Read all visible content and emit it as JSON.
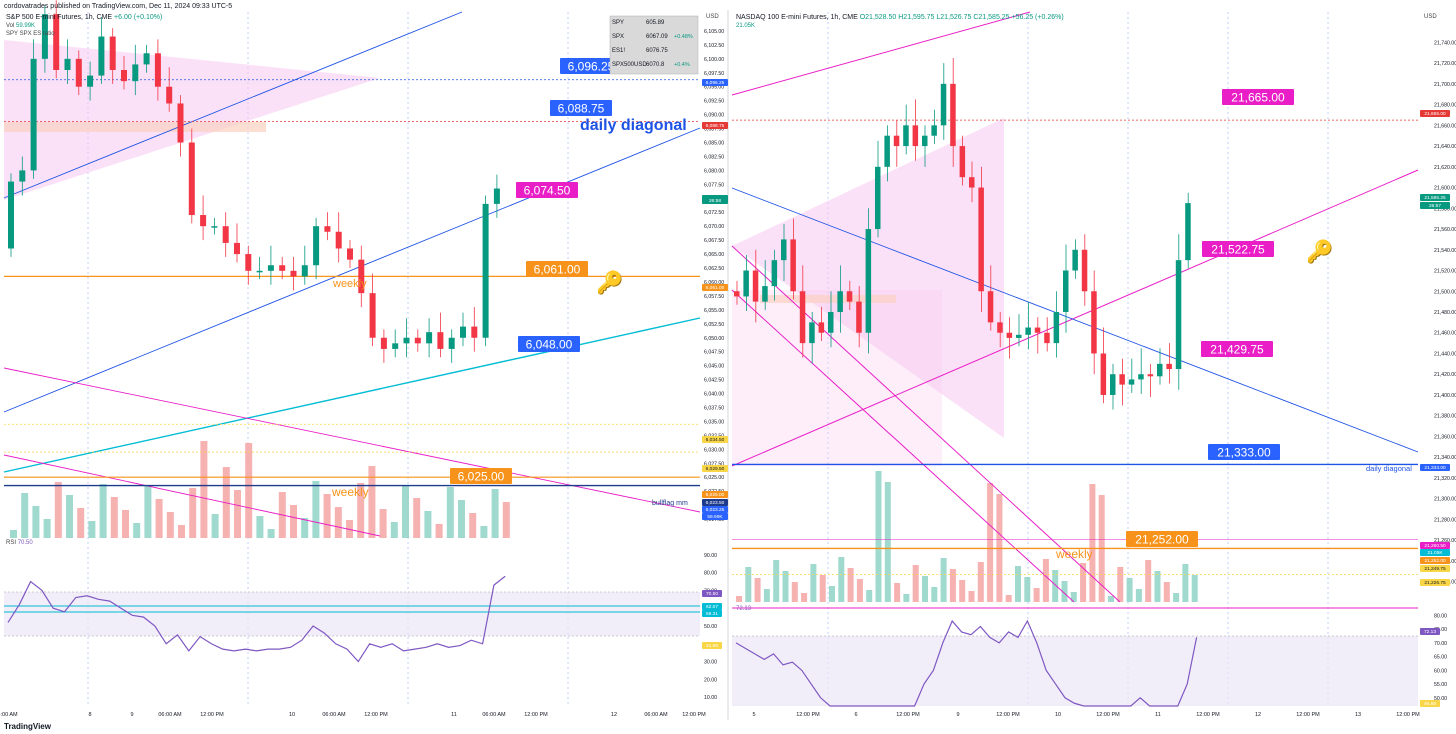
{
  "publisher": "cordovatrades published on TradingView.com, Dec 11, 2024 09:33 UTC-5",
  "watermark": "TradingView",
  "chart_data": [
    {
      "type": "line",
      "title": "S&P 500 E-mini Futures, 1h, CME",
      "change_text": "+6.00 (+0.10%)",
      "volume_label": "Vol",
      "volume_value": "59.99K",
      "overlay_label": "SPY SPX ES ratio",
      "currency": "USD",
      "y_ticks": [
        "6,105.00",
        "6,102.50",
        "6,100.00",
        "6,097.50",
        "6,095.00",
        "6,092.50",
        "6,090.00",
        "6,087.50",
        "6,085.00",
        "6,082.50",
        "6,080.00",
        "6,077.50",
        "6,075.00",
        "6,072.50",
        "6,070.00",
        "6,067.50",
        "6,065.00",
        "6,062.50",
        "6,060.00",
        "6,057.50",
        "6,055.00",
        "6,052.50",
        "6,050.00",
        "6,047.50",
        "6,045.00",
        "6,042.50",
        "6,040.00",
        "6,037.50",
        "6,035.00",
        "6,032.50",
        "6,030.00",
        "6,027.50",
        "6,025.00",
        "6,022.50",
        "6,020.00",
        "6,017.50"
      ],
      "ylim": [
        6015.0,
        6107.5
      ],
      "x_ticks": [
        "06:00 AM",
        "8",
        "9",
        "06:00 AM",
        "12:00 PM",
        "10",
        "06:00 AM",
        "12:00 PM",
        "11",
        "06:00 AM",
        "12:00 PM",
        "12",
        "06:00 AM",
        "12:00 PM"
      ],
      "price_path": [
        6066,
        6078,
        6080,
        6100,
        6108,
        6098,
        6100,
        6095,
        6097,
        6104,
        6098,
        6096,
        6099,
        6101,
        6095,
        6092,
        6085,
        6072,
        6070,
        6070,
        6067,
        6065,
        6062,
        6062,
        6063,
        6062,
        6061,
        6063,
        6070,
        6069,
        6066,
        6064,
        6058,
        6050,
        6048,
        6049,
        6050,
        6049,
        6051,
        6048,
        6050,
        6052,
        6050,
        6074,
        6076.75
      ],
      "levels": [
        {
          "label": "6,096.25",
          "value": 6096.25,
          "color": "#1e53e5"
        },
        {
          "label": "6,088.75",
          "value": 6088.75,
          "color": "#1e53e5"
        },
        {
          "label": "6,074.50",
          "value": 6074.5,
          "color": "#e91ec7"
        },
        {
          "label": "6,061.00",
          "value": 6061.0,
          "color": "#f7931a"
        },
        {
          "label": "6,048.00",
          "value": 6048.0,
          "color": "#1e53e5"
        },
        {
          "label": "6,025.00",
          "value": 6025.0,
          "color": "#f7931a"
        }
      ],
      "annotations": [
        "daily diagonal",
        "weekly",
        "weekly",
        "bullflag mm"
      ],
      "price_tags": [
        "6,096.25",
        "6,088.75",
        "6,076.75",
        "26:58",
        "6,061.00",
        "6,034.50",
        "6,029.50",
        "6,025.00",
        "6,023.50",
        "6,023.25",
        "59.99K"
      ],
      "watch_table": [
        {
          "sym": "SPY",
          "price": "605.89",
          "chg": ""
        },
        {
          "sym": "SPX",
          "price": "6067.09",
          "chg": "+0.48%"
        },
        {
          "sym": "ES1!",
          "price": "6076.75",
          "chg": ""
        },
        {
          "sym": "SPX500USD",
          "price": "6070.8",
          "chg": "+0.4%"
        }
      ],
      "rsi_label": "RSI",
      "rsi_values_text": "70.50",
      "rsi_ticks": [
        "90.00",
        "80.00",
        "70.00",
        "60.00",
        "50.00",
        "40.00",
        "30.00",
        "20.00",
        "10.00"
      ],
      "rsi_tags": [
        "70.50",
        "62.07",
        "58.31",
        "41.60"
      ],
      "rsi_path": [
        52,
        62,
        75,
        70,
        60,
        58,
        66,
        67,
        65,
        64,
        60,
        56,
        55,
        50,
        40,
        45,
        36,
        44,
        40,
        37,
        36,
        37,
        36,
        37,
        37,
        38,
        42,
        50,
        46,
        40,
        37,
        30,
        40,
        38,
        40,
        36,
        37,
        38,
        40,
        38,
        39,
        42,
        40,
        73,
        78
      ]
    },
    {
      "type": "line",
      "title": "NASDAQ 100 E-mini Futures, 1h, CME",
      "ohlc_text": "O21,528.50 H21,595.75 L21,526.75 C21,585.25 +56.25 (+0.26%)",
      "volume_value": "21.05K",
      "currency": "USD",
      "y_ticks": [
        "21,740.00",
        "21,720.00",
        "21,700.00",
        "21,680.00",
        "21,660.00",
        "21,640.00",
        "21,620.00",
        "21,600.00",
        "21,580.00",
        "21,560.00",
        "21,540.00",
        "21,520.00",
        "21,500.00",
        "21,480.00",
        "21,460.00",
        "21,440.00",
        "21,420.00",
        "21,400.00",
        "21,380.00",
        "21,360.00",
        "21,340.00",
        "21,320.00",
        "21,300.00",
        "21,280.00",
        "21,260.00",
        "21,240.00",
        "21,220.00"
      ],
      "ylim": [
        21210,
        21750
      ],
      "x_ticks": [
        "5",
        "12:00 PM",
        "6",
        "12:00 PM",
        "9",
        "12:00 PM",
        "10",
        "12:00 PM",
        "11",
        "12:00 PM",
        "12",
        "12:00 PM",
        "13",
        "12:00 PM"
      ],
      "price_path": [
        21500,
        21495,
        21520,
        21490,
        21505,
        21530,
        21550,
        21500,
        21450,
        21470,
        21460,
        21480,
        21500,
        21490,
        21460,
        21560,
        21620,
        21650,
        21640,
        21660,
        21640,
        21650,
        21660,
        21700,
        21640,
        21610,
        21600,
        21500,
        21470,
        21460,
        21455,
        21458,
        21465,
        21460,
        21450,
        21480,
        21520,
        21540,
        21500,
        21440,
        21400,
        21420,
        21410,
        21415,
        21420,
        21418,
        21430,
        21425,
        21530,
        21585
      ],
      "levels": [
        {
          "label": "21,665.00",
          "value": 21665.0,
          "color": "#e91ec7"
        },
        {
          "label": "21,522.75",
          "value": 21522.75,
          "color": "#e91ec7"
        },
        {
          "label": "21,429.75",
          "value": 21429.75,
          "color": "#e91ec7"
        },
        {
          "label": "21,333.00",
          "value": 21333.0,
          "color": "#1e53e5"
        },
        {
          "label": "21,252.00",
          "value": 21252.0,
          "color": "#f7931a"
        }
      ],
      "annotations": [
        "daily diagonal",
        "weekly"
      ],
      "price_tags": [
        "21,665.00",
        "21,585.25",
        "26:57",
        "21,333.00",
        "21,260.50",
        "21.05K",
        "21,252.00",
        "21,249.75",
        "21,226.75"
      ],
      "rsi_values_text": "72.13",
      "rsi_ticks": [
        "80.00",
        "75.00",
        "70.00",
        "65.00",
        "60.00",
        "55.00",
        "50.00"
      ],
      "rsi_tags": [
        "72.13",
        "46.68"
      ],
      "rsi_path": [
        70,
        68,
        66,
        64,
        66,
        62,
        63,
        60,
        55,
        50,
        45,
        40,
        35,
        45,
        42,
        38,
        30,
        35,
        30,
        40,
        55,
        60,
        70,
        78,
        74,
        73,
        76,
        72,
        70,
        74,
        72,
        78,
        70,
        60,
        55,
        50,
        48,
        44,
        40,
        35,
        33,
        38,
        45,
        50,
        40,
        35,
        40,
        38,
        55,
        72
      ]
    }
  ]
}
